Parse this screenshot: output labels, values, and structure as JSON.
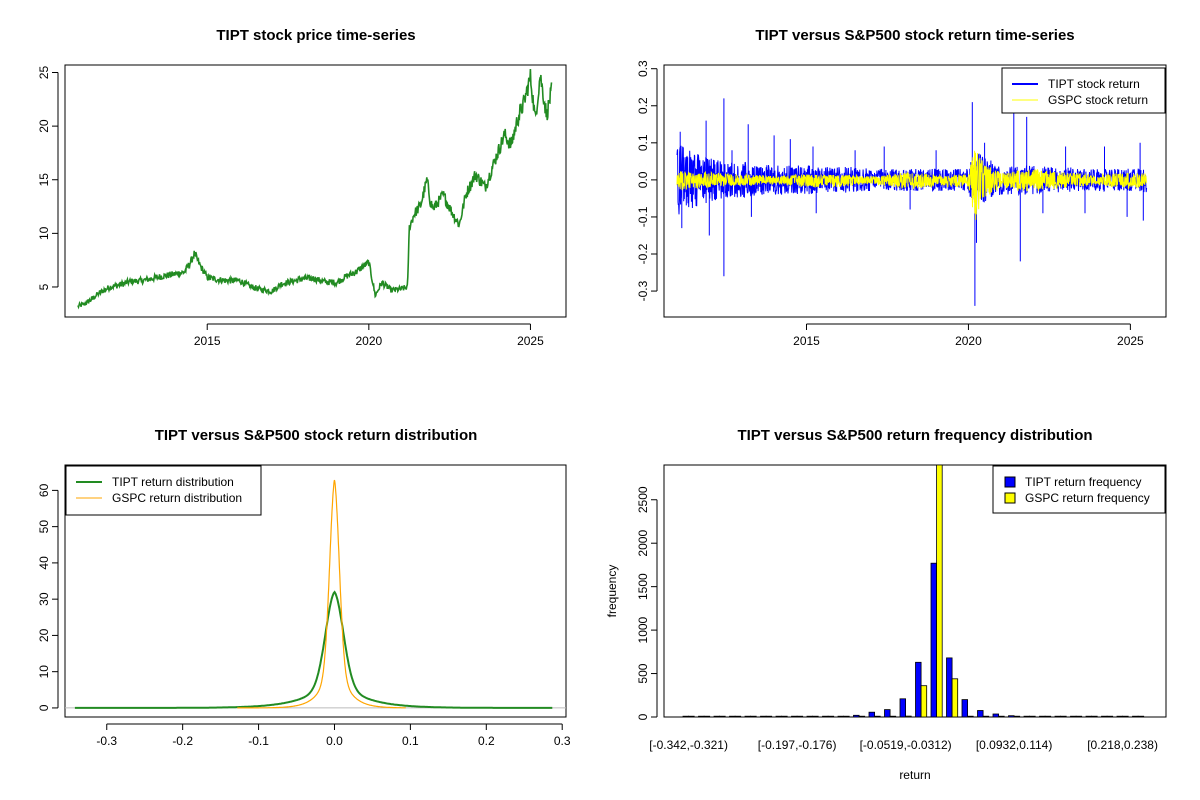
{
  "chart_data": [
    {
      "id": "p1",
      "type": "line",
      "title": "TIPT stock price time-series",
      "xlabel": "",
      "ylabel": "",
      "xlim": [
        2010.6,
        2026.1
      ],
      "ylim": [
        2.2,
        25.7
      ],
      "x_ticks": [
        2015,
        2020,
        2025
      ],
      "x_tick_labels": [
        "2015",
        "2020",
        "2025"
      ],
      "y_ticks": [
        5,
        10,
        15,
        20,
        25
      ],
      "y_tick_labels": [
        "5",
        "10",
        "15",
        "20",
        "25"
      ],
      "series": [
        {
          "color": "#228B22",
          "x": [
            2011.0,
            2011.2,
            2011.4,
            2011.6,
            2011.8,
            2012.0,
            2012.3,
            2012.6,
            2013.0,
            2013.3,
            2013.6,
            2014.0,
            2014.3,
            2014.5,
            2014.6,
            2014.8,
            2015.0,
            2015.3,
            2015.6,
            2016.0,
            2016.3,
            2016.6,
            2017.0,
            2017.3,
            2017.6,
            2018.0,
            2018.3,
            2018.6,
            2019.0,
            2019.3,
            2019.6,
            2019.9,
            2020.0,
            2020.2,
            2020.4,
            2020.7,
            2021.0,
            2021.2,
            2021.25,
            2021.4,
            2021.6,
            2021.8,
            2021.9,
            2022.0,
            2022.3,
            2022.6,
            2022.8,
            2023.0,
            2023.3,
            2023.6,
            2023.9,
            2024.2,
            2024.4,
            2024.6,
            2024.8,
            2025.0,
            2025.15,
            2025.3,
            2025.5,
            2025.65
          ],
          "y": [
            3.2,
            3.4,
            3.8,
            4.3,
            4.7,
            5.0,
            5.2,
            5.5,
            5.6,
            5.8,
            6.0,
            6.2,
            6.4,
            7.4,
            8.1,
            6.9,
            5.9,
            5.7,
            5.6,
            5.6,
            5.1,
            4.8,
            4.6,
            5.3,
            5.5,
            5.8,
            5.8,
            5.5,
            5.4,
            6.0,
            6.4,
            7.1,
            7.3,
            4.2,
            5.4,
            4.7,
            4.8,
            5.0,
            10.5,
            11.8,
            12.6,
            15.0,
            13.0,
            12.3,
            13.6,
            11.8,
            10.8,
            13.6,
            15.5,
            14.3,
            16.8,
            19.2,
            18.2,
            20.6,
            22.2,
            24.6,
            20.6,
            24.8,
            21.0,
            23.3
          ]
        }
      ]
    },
    {
      "id": "p2",
      "type": "line",
      "title": "TIPT versus S&P500 stock return time-series",
      "xlabel": "",
      "ylabel": "",
      "xlim": [
        2010.6,
        2026.1
      ],
      "ylim": [
        -0.37,
        0.31
      ],
      "x_ticks": [
        2015,
        2020,
        2025
      ],
      "x_tick_labels": [
        "2015",
        "2020",
        "2025"
      ],
      "y_ticks": [
        -0.3,
        -0.2,
        -0.1,
        0.0,
        0.1,
        0.2,
        0.3
      ],
      "y_tick_labels": [
        "-0.3",
        "-0.2",
        "-0.1",
        "0.0",
        "0.1",
        "0.2",
        "0.3"
      ],
      "legend": {
        "position": "top-right",
        "entries": [
          "TIPT stock return",
          "GSPC stock return"
        ]
      },
      "series": [
        {
          "name": "TIPT stock return",
          "color": "#0000FF",
          "band": {
            "x": [
              2011.0,
              2011.5,
              2012.0,
              2012.5,
              2013.0,
              2013.5,
              2014.0,
              2014.5,
              2015.0,
              2015.5,
              2016.0,
              2016.5,
              2017.0,
              2017.5,
              2018.0,
              2018.5,
              2019.0,
              2019.5,
              2020.0,
              2020.2,
              2020.5,
              2021.0,
              2021.5,
              2022.0,
              2022.5,
              2023.0,
              2023.5,
              2024.0,
              2024.5,
              2025.0,
              2025.5
            ],
            "upper": [
              0.1,
              0.08,
              0.06,
              0.05,
              0.05,
              0.04,
              0.04,
              0.04,
              0.04,
              0.035,
              0.035,
              0.035,
              0.03,
              0.03,
              0.03,
              0.03,
              0.03,
              0.03,
              0.03,
              0.08,
              0.06,
              0.04,
              0.04,
              0.04,
              0.035,
              0.035,
              0.03,
              0.03,
              0.03,
              0.03,
              0.035
            ],
            "lower": [
              -0.1,
              -0.08,
              -0.06,
              -0.05,
              -0.05,
              -0.04,
              -0.04,
              -0.04,
              -0.04,
              -0.035,
              -0.035,
              -0.035,
              -0.03,
              -0.03,
              -0.03,
              -0.03,
              -0.03,
              -0.03,
              -0.03,
              -0.1,
              -0.06,
              -0.04,
              -0.04,
              -0.04,
              -0.035,
              -0.035,
              -0.03,
              -0.03,
              -0.03,
              -0.03,
              -0.035
            ]
          },
          "spikes": [
            {
              "x": 2011.1,
              "y": 0.13
            },
            {
              "x": 2011.15,
              "y": -0.13
            },
            {
              "x": 2011.9,
              "y": 0.16
            },
            {
              "x": 2012.0,
              "y": -0.15
            },
            {
              "x": 2012.45,
              "y": 0.22
            },
            {
              "x": 2012.45,
              "y": -0.26
            },
            {
              "x": 2012.7,
              "y": 0.08
            },
            {
              "x": 2013.2,
              "y": 0.15
            },
            {
              "x": 2013.3,
              "y": -0.1
            },
            {
              "x": 2014.0,
              "y": 0.12
            },
            {
              "x": 2014.5,
              "y": 0.11
            },
            {
              "x": 2015.2,
              "y": 0.09
            },
            {
              "x": 2015.3,
              "y": -0.09
            },
            {
              "x": 2016.5,
              "y": 0.08
            },
            {
              "x": 2017.4,
              "y": 0.09
            },
            {
              "x": 2018.2,
              "y": -0.08
            },
            {
              "x": 2019.0,
              "y": 0.08
            },
            {
              "x": 2020.12,
              "y": 0.21
            },
            {
              "x": 2020.2,
              "y": -0.34
            },
            {
              "x": 2020.25,
              "y": -0.17
            },
            {
              "x": 2020.5,
              "y": 0.1
            },
            {
              "x": 2021.4,
              "y": 0.18
            },
            {
              "x": 2021.6,
              "y": -0.22
            },
            {
              "x": 2021.8,
              "y": 0.17
            },
            {
              "x": 2022.3,
              "y": -0.09
            },
            {
              "x": 2023.0,
              "y": 0.09
            },
            {
              "x": 2023.6,
              "y": -0.09
            },
            {
              "x": 2024.2,
              "y": 0.09
            },
            {
              "x": 2024.9,
              "y": -0.1
            },
            {
              "x": 2025.3,
              "y": 0.1
            },
            {
              "x": 2025.4,
              "y": -0.11
            }
          ]
        },
        {
          "name": "GSPC stock return",
          "color": "#FFFF00",
          "band": {
            "x": [
              2011.0,
              2012.0,
              2013.0,
              2014.0,
              2015.0,
              2016.0,
              2017.0,
              2018.0,
              2019.0,
              2020.0,
              2020.2,
              2020.5,
              2021.0,
              2022.0,
              2023.0,
              2024.0,
              2025.0,
              2025.5
            ],
            "upper": [
              0.025,
              0.02,
              0.015,
              0.012,
              0.015,
              0.015,
              0.01,
              0.02,
              0.015,
              0.015,
              0.09,
              0.04,
              0.02,
              0.03,
              0.02,
              0.015,
              0.02,
              0.02
            ],
            "lower": [
              -0.03,
              -0.02,
              -0.015,
              -0.012,
              -0.02,
              -0.02,
              -0.01,
              -0.025,
              -0.018,
              -0.02,
              -0.12,
              -0.05,
              -0.02,
              -0.035,
              -0.02,
              -0.015,
              -0.025,
              -0.02
            ]
          }
        }
      ]
    },
    {
      "id": "p3",
      "type": "line",
      "title": "TIPT versus S&P500 stock return distribution",
      "xlabel": "",
      "ylabel": "",
      "xlim": [
        -0.355,
        0.305
      ],
      "ylim": [
        -2.5,
        67.0
      ],
      "x_ticks": [
        -0.3,
        -0.2,
        -0.1,
        0.0,
        0.1,
        0.2,
        0.3
      ],
      "x_tick_labels": [
        "-0.3",
        "-0.2",
        "-0.1",
        "0.0",
        "0.1",
        "0.2",
        "0.3"
      ],
      "y_ticks": [
        0,
        10,
        20,
        30,
        40,
        50,
        60
      ],
      "y_tick_labels": [
        "0",
        "10",
        "20",
        "30",
        "40",
        "50",
        "60"
      ],
      "legend": {
        "position": "top-left",
        "entries": [
          "TIPT return distribution",
          "GSPC return distribution"
        ]
      },
      "series": [
        {
          "name": "TIPT return distribution",
          "color": "#228B22",
          "peak": 32,
          "sigma": 0.012,
          "tail_scale": 0.035,
          "range": [
            -0.342,
            0.287
          ]
        },
        {
          "name": "GSPC return distribution",
          "color": "#FFA500",
          "peak": 63,
          "sigma": 0.0065,
          "tail_scale": 0.015,
          "range": [
            -0.128,
            0.094
          ]
        }
      ]
    },
    {
      "id": "p4",
      "type": "bar",
      "title": "TIPT versus S&P500 return frequency distribution",
      "xlabel": "return",
      "ylabel": "frequency",
      "ylim": [
        0,
        2900
      ],
      "y_ticks": [
        0,
        500,
        1000,
        1500,
        2000,
        2500
      ],
      "y_tick_labels": [
        "0",
        "500",
        "1000",
        "1500",
        "2000",
        "2500"
      ],
      "categories_shown": [
        "[-0.342,-0.321)",
        "[-0.197,-0.176)",
        "[-0.0519,-0.0312)",
        "[0.0932,0.114)",
        "[0.218,0.238)"
      ],
      "category_count": 30,
      "label_every": 7,
      "legend": {
        "position": "top-right",
        "entries": [
          "TIPT return frequency",
          "GSPC return frequency"
        ]
      },
      "series": [
        {
          "name": "TIPT return frequency",
          "color": "#0000FF",
          "values": [
            1,
            0,
            0,
            0,
            0,
            1,
            1,
            2,
            3,
            4,
            8,
            20,
            55,
            85,
            210,
            630,
            1770,
            680,
            200,
            75,
            35,
            15,
            8,
            6,
            4,
            3,
            2,
            1,
            1,
            1
          ]
        },
        {
          "name": "GSPC return frequency",
          "color": "#FFFF00",
          "values": [
            0,
            0,
            0,
            0,
            0,
            0,
            0,
            0,
            0,
            0,
            0,
            0,
            0,
            2,
            10,
            360,
            2900,
            440,
            8,
            1,
            0,
            0,
            0,
            0,
            0,
            0,
            0,
            0,
            0,
            0
          ]
        }
      ]
    }
  ]
}
